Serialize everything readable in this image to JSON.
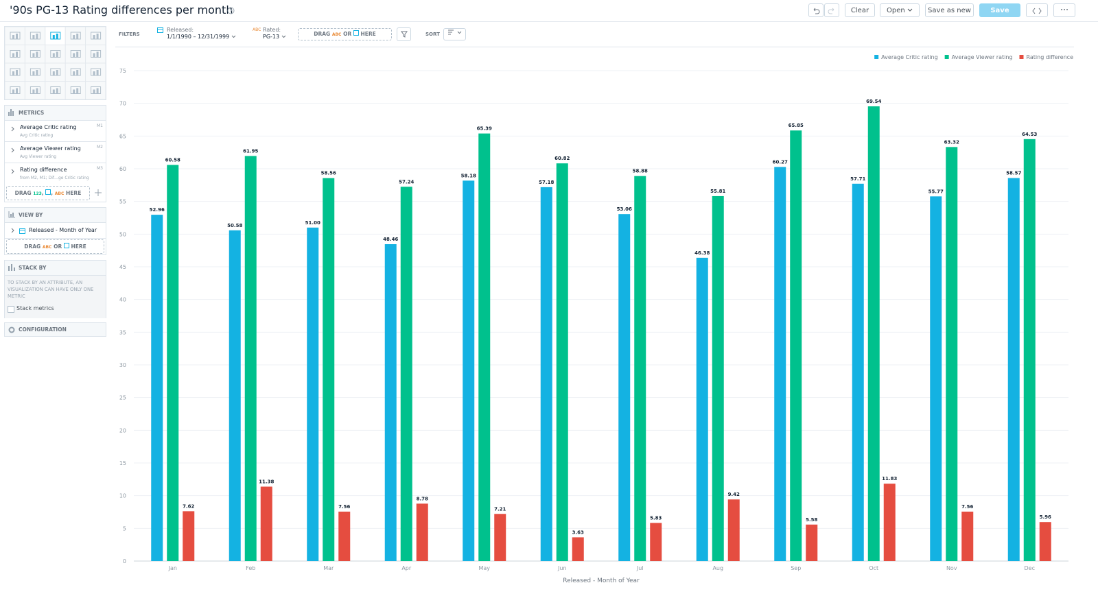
{
  "header": {
    "title": "'90s PG-13 Rating differences per month",
    "clear": "Clear",
    "open": "Open",
    "save_as_new": "Save as new",
    "save": "Save"
  },
  "filters": {
    "label": "FILTERS",
    "released_label": "Released:",
    "released_value": "1/1/1990 – 12/31/1999",
    "rated_icon": "ABC",
    "rated_label": "Rated:",
    "rated_value": "PG-13",
    "drag": "DRAG",
    "drag_abc": "ABC",
    "drag_or": "OR",
    "drag_here": "HERE",
    "sort": "SORT"
  },
  "sidebar": {
    "metrics_title": "METRICS",
    "metrics": [
      {
        "name": "Average Critic rating",
        "sub": "Avg Critic rating",
        "tag": "M1"
      },
      {
        "name": "Average Viewer rating",
        "sub": "Avg Viewer rating",
        "tag": "M2"
      },
      {
        "name": "Rating difference",
        "sub": "from M2, M1; Dif…ge Critic rating",
        "tag": "M3"
      }
    ],
    "metrics_drag": {
      "drag": "DRAG",
      "num": "123",
      "comma": ",",
      "abc": "ABC",
      "here": "HERE"
    },
    "view_by_title": "VIEW BY",
    "view_by_item": "Released - Month of Year",
    "view_by_drag": {
      "drag": "DRAG",
      "abc": "ABC",
      "or": "OR",
      "here": "HERE"
    },
    "stack_by_title": "STACK BY",
    "stack_by_note": "TO STACK BY AN ATTRIBUTE, AN VISUALIZATION CAN HAVE ONLY ONE METRIC",
    "stack_metrics": "Stack metrics",
    "configuration": "CONFIGURATION"
  },
  "chart_data": {
    "type": "bar",
    "x_label": "Released - Month of Year",
    "categories": [
      "Jan",
      "Feb",
      "Mar",
      "Apr",
      "May",
      "Jun",
      "Jul",
      "Aug",
      "Sep",
      "Oct",
      "Nov",
      "Dec"
    ],
    "series": [
      {
        "name": "Average Critic rating",
        "color": "#14b2e2",
        "values": [
          52.96,
          50.58,
          51.0,
          48.46,
          58.18,
          57.18,
          53.06,
          46.38,
          60.27,
          57.71,
          55.77,
          58.57
        ],
        "value_labels": [
          "52.96",
          "50.58",
          "51.00",
          "48.46",
          "58.18",
          "57.18",
          "53.06",
          "46.38",
          "60.27",
          "57.71",
          "55.77",
          "58.57"
        ]
      },
      {
        "name": "Average Viewer rating",
        "color": "#00c18d",
        "values": [
          60.58,
          61.95,
          58.56,
          57.24,
          65.39,
          60.82,
          58.88,
          55.81,
          65.85,
          69.54,
          63.32,
          64.53
        ]
      },
      {
        "name": "Rating difference",
        "color": "#e54d40",
        "values": [
          7.62,
          11.38,
          7.56,
          8.78,
          7.21,
          3.63,
          5.83,
          9.42,
          5.58,
          11.83,
          7.56,
          5.96
        ]
      }
    ],
    "ylim": [
      0,
      75
    ],
    "yticks": [
      0,
      5,
      10,
      15,
      20,
      25,
      30,
      35,
      40,
      45,
      50,
      55,
      60,
      65,
      70,
      75
    ],
    "grid": true,
    "legend": "top-right"
  }
}
